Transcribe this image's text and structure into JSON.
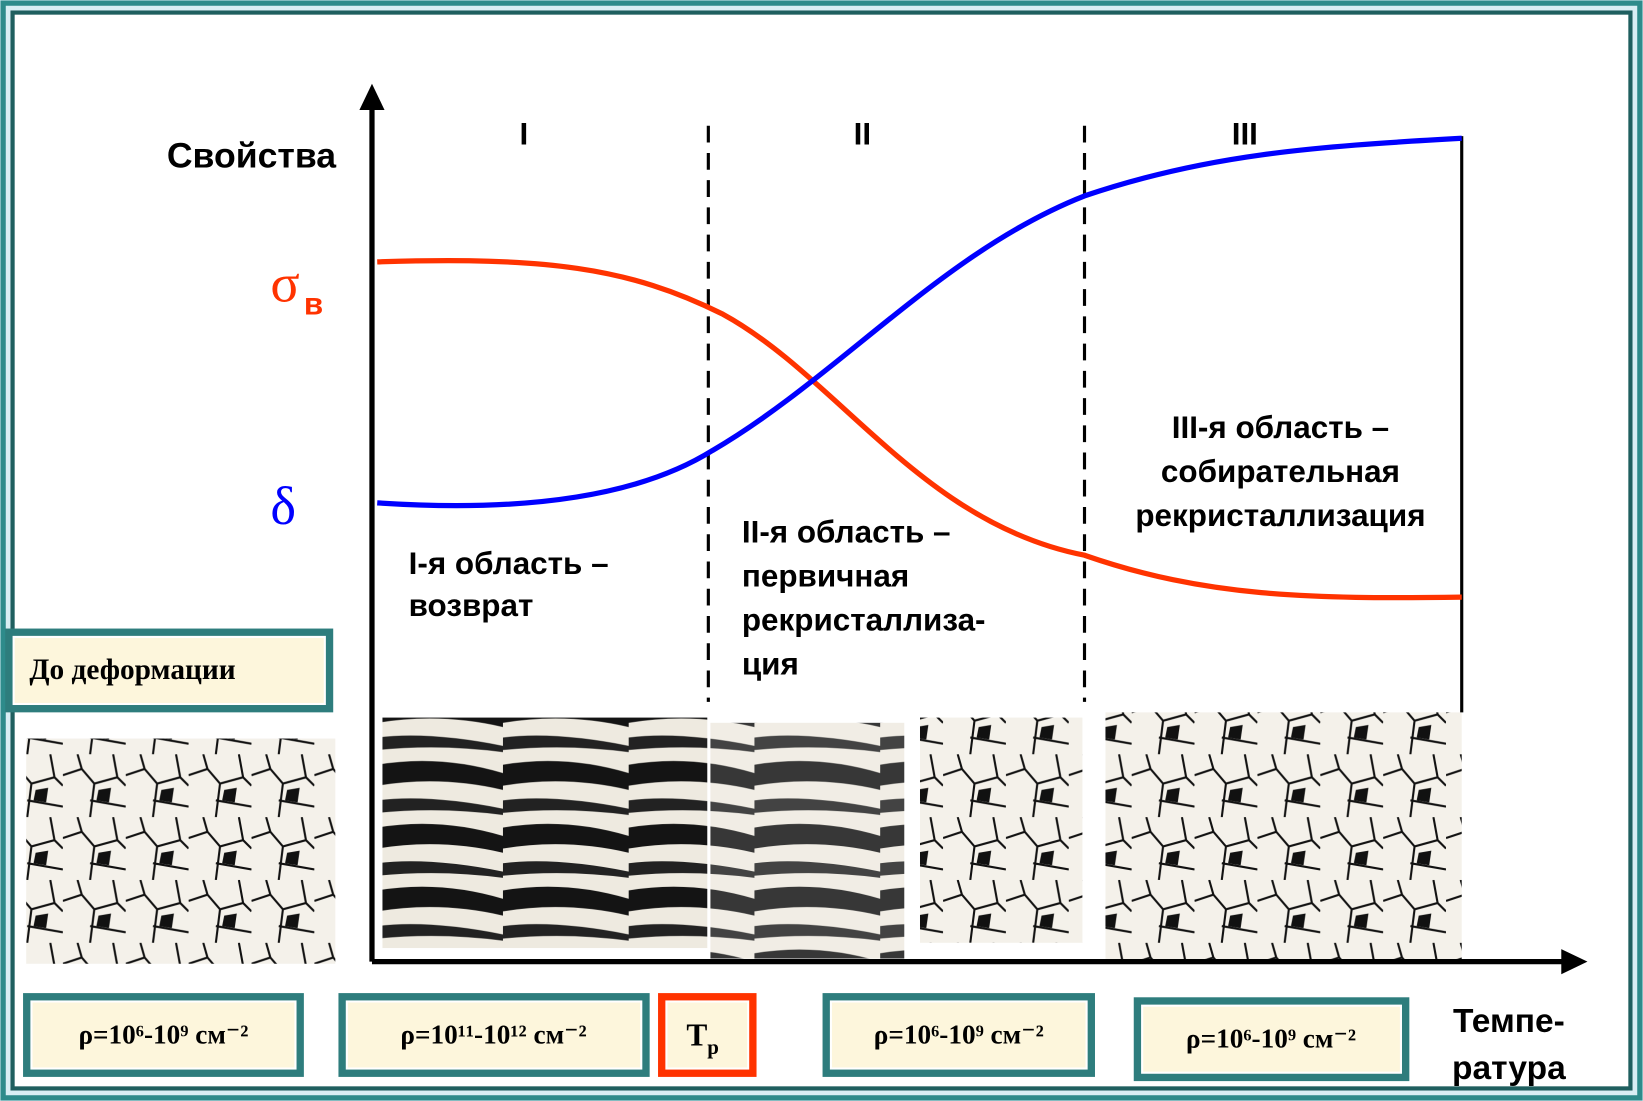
{
  "y_axis_label": "Свойства",
  "sigma": {
    "symbol": "σ",
    "subscript": "в"
  },
  "delta": "δ",
  "regions": [
    "I",
    "II",
    "III"
  ],
  "region_descriptions": [
    [
      "I-я область –",
      "возврат"
    ],
    [
      "II-я область –",
      "первичная",
      "рекристаллиза-",
      "ция"
    ],
    [
      "III-я область –",
      "собирательная",
      "рекристаллизация"
    ]
  ],
  "before_deformation": "До деформации",
  "densities": [
    "ρ=10⁶-10⁹ см⁻²",
    "ρ=10¹¹-10¹² см⁻²",
    "ρ=10⁶-10⁹ см⁻²",
    "ρ=10⁶-10⁹ см⁻²"
  ],
  "recrystallization_temperature": {
    "symbol": "Т",
    "subscript": "р"
  },
  "x_axis_label": [
    "Темпе-",
    "ратура"
  ]
}
